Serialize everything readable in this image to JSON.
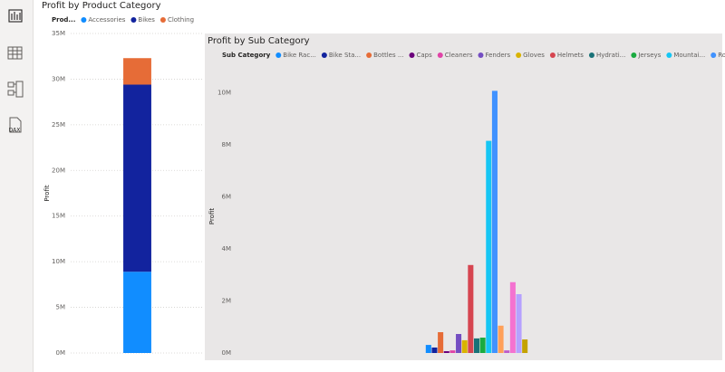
{
  "sidebar": {
    "dax_label": "DAX"
  },
  "chart_data": [
    {
      "type": "stacked_bar",
      "title": "Profit by Product Category",
      "legend_title": "Prod...",
      "ylabel": "Profit",
      "categories": [
        null
      ],
      "series": [
        {
          "name": "Accessories",
          "color": "#118dff",
          "values": [
            8900000
          ]
        },
        {
          "name": "Bikes",
          "color": "#12239e",
          "values": [
            20500000
          ]
        },
        {
          "name": "Clothing",
          "color": "#e66c37",
          "values": [
            2900000
          ]
        }
      ],
      "ylim": [
        0,
        35000000
      ],
      "yticks": [
        {
          "value": 0,
          "label": "0M"
        },
        {
          "value": 5000000,
          "label": "5M"
        },
        {
          "value": 10000000,
          "label": "10M"
        },
        {
          "value": 15000000,
          "label": "15M"
        },
        {
          "value": 20000000,
          "label": "20M"
        },
        {
          "value": 25000000,
          "label": "25M"
        },
        {
          "value": 30000000,
          "label": "30M"
        },
        {
          "value": 35000000,
          "label": "35M"
        }
      ],
      "grid": true
    },
    {
      "type": "bar",
      "title": "Profit by Sub Category",
      "legend_title": "Sub Category",
      "ylabel": "Profit",
      "categories": [
        null
      ],
      "series": [
        {
          "name": "Bike Rac...",
          "color": "#118dff",
          "values": [
            310000
          ]
        },
        {
          "name": "Bike Sta...",
          "color": "#12239e",
          "values": [
            210000
          ]
        },
        {
          "name": "Bottles ...",
          "color": "#e66c37",
          "values": [
            800000
          ]
        },
        {
          "name": "Caps",
          "color": "#6b007b",
          "values": [
            70000
          ]
        },
        {
          "name": "Cleaners",
          "color": "#e044a7",
          "values": [
            100000
          ]
        },
        {
          "name": "Fenders",
          "color": "#744ec2",
          "values": [
            730000
          ]
        },
        {
          "name": "Gloves",
          "color": "#d9b300",
          "values": [
            490000
          ]
        },
        {
          "name": "Helmets",
          "color": "#d64550",
          "values": [
            3380000
          ]
        },
        {
          "name": "Hydrati...",
          "color": "#197278",
          "values": [
            560000
          ]
        },
        {
          "name": "Jerseys",
          "color": "#1aab40",
          "values": [
            590000
          ]
        },
        {
          "name": "Mountai...",
          "color": "#15c6f4",
          "values": [
            8150000
          ]
        },
        {
          "name": "Road Bi...",
          "color": "#4092ff",
          "values": [
            10070000
          ]
        },
        {
          "color": "#ffa058",
          "values": [
            1050000
          ]
        },
        {
          "color": "#be5dc9",
          "values": [
            100000
          ]
        },
        {
          "color": "#f472d0",
          "values": [
            2720000
          ]
        },
        {
          "color": "#b5a1ff",
          "values": [
            2260000
          ]
        },
        {
          "color": "#c4a200",
          "values": [
            520000
          ]
        }
      ],
      "ylim": [
        0,
        10500000
      ],
      "yticks": [
        {
          "value": 0,
          "label": "0M"
        },
        {
          "value": 2000000,
          "label": "2M"
        },
        {
          "value": 4000000,
          "label": "4M"
        },
        {
          "value": 6000000,
          "label": "6M"
        },
        {
          "value": 8000000,
          "label": "8M"
        },
        {
          "value": 10000000,
          "label": "10M"
        }
      ],
      "grid": false
    }
  ]
}
